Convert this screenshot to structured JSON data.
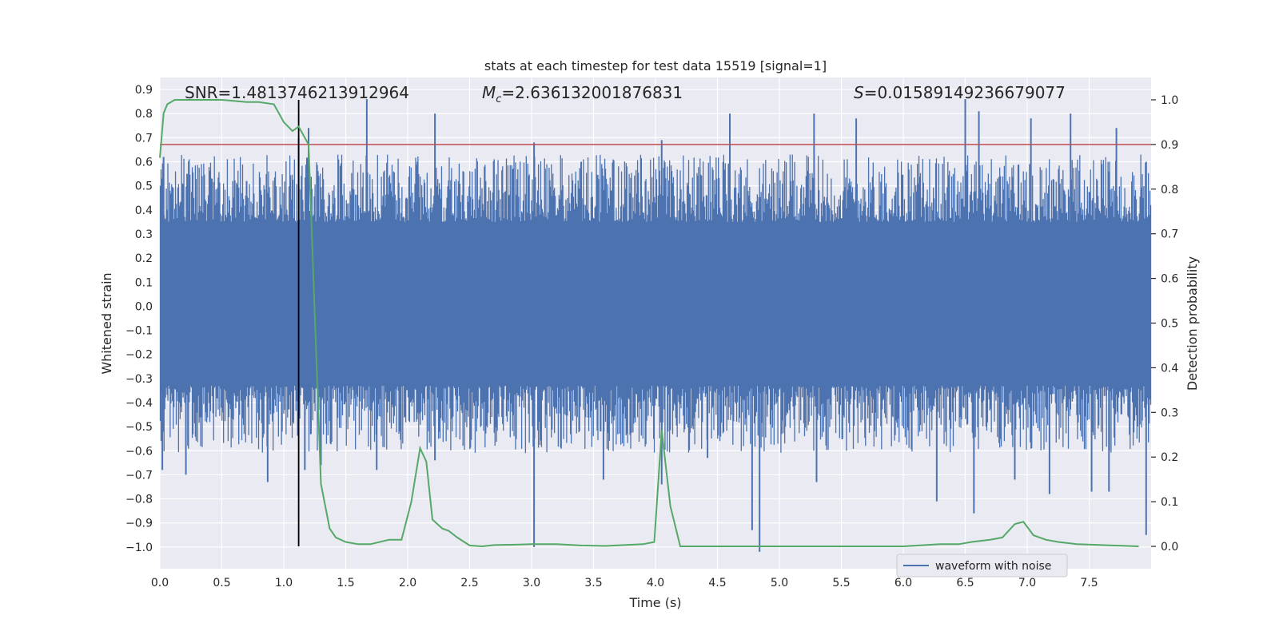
{
  "chart_data": {
    "type": "line",
    "title": "stats at each timestep for test data 15519 [signal=1]",
    "xlabel": "Time (s)",
    "ylabel": "Whitened strain",
    "y2label": "Detection probability",
    "xlim": [
      0.0,
      8.0
    ],
    "ylim": [
      -1.09,
      0.95
    ],
    "y2lim": [
      -0.05,
      1.05
    ],
    "x_ticks": [
      "0.0",
      "0.5",
      "1.0",
      "1.5",
      "2.0",
      "2.5",
      "3.0",
      "3.5",
      "4.0",
      "4.5",
      "5.0",
      "5.5",
      "6.0",
      "6.5",
      "7.0",
      "7.5"
    ],
    "y_ticks": [
      "0.9",
      "0.8",
      "0.7",
      "0.6",
      "0.5",
      "0.4",
      "0.3",
      "0.2",
      "0.1",
      "0.0",
      "-0.1",
      "-0.2",
      "-0.3",
      "-0.4",
      "-0.5",
      "-0.6",
      "-0.7",
      "-0.8",
      "-0.9",
      "-1.0"
    ],
    "y2_ticks": [
      "1.0",
      "0.9",
      "0.8",
      "0.7",
      "0.6",
      "0.5",
      "0.4",
      "0.3",
      "0.2",
      "0.1",
      "0.0"
    ],
    "annotations": {
      "snr": {
        "label": "SNR=1.4813746213912964"
      },
      "mc": {
        "symbol": "M",
        "subscript": "c",
        "value": "=2.636132001876831"
      },
      "s": {
        "symbol": "S",
        "value": "=0.01589149236679077"
      }
    },
    "threshold": {
      "axis": "y2",
      "value": 0.9,
      "color": "#c44e52"
    },
    "marker_time": {
      "x": 1.12,
      "color": "#000000"
    },
    "series": [
      {
        "name": "waveform with noise",
        "axis": "y",
        "color": "#4c72b0",
        "style": "dense noise",
        "band": [
          -0.33,
          0.35
        ],
        "positive_spikes": [
          [
            0.03,
            0.62
          ],
          [
            0.22,
            0.55
          ],
          [
            0.7,
            0.52
          ],
          [
            1.12,
            0.7
          ],
          [
            1.2,
            0.74
          ],
          [
            1.67,
            0.86
          ],
          [
            2.22,
            0.8
          ],
          [
            3.02,
            0.68
          ],
          [
            3.4,
            0.6
          ],
          [
            4.05,
            0.69
          ],
          [
            4.6,
            0.8
          ],
          [
            5.28,
            0.8
          ],
          [
            5.62,
            0.78
          ],
          [
            6.5,
            0.86
          ],
          [
            6.61,
            0.81
          ],
          [
            7.03,
            0.78
          ],
          [
            7.35,
            0.8
          ],
          [
            7.72,
            0.74
          ],
          [
            7.96,
            0.6
          ]
        ],
        "negative_spikes": [
          [
            0.02,
            -0.68
          ],
          [
            0.21,
            -0.7
          ],
          [
            0.87,
            -0.73
          ],
          [
            1.17,
            -0.68
          ],
          [
            1.3,
            -0.66
          ],
          [
            1.75,
            -0.68
          ],
          [
            2.22,
            -0.64
          ],
          [
            3.02,
            -1.0
          ],
          [
            3.58,
            -0.72
          ],
          [
            4.05,
            -0.74
          ],
          [
            4.42,
            -0.63
          ],
          [
            4.78,
            -0.93
          ],
          [
            4.84,
            -1.02
          ],
          [
            5.3,
            -0.73
          ],
          [
            6.27,
            -0.81
          ],
          [
            6.57,
            -0.86
          ],
          [
            6.9,
            -0.72
          ],
          [
            7.18,
            -0.78
          ],
          [
            7.52,
            -0.77
          ],
          [
            7.66,
            -0.77
          ],
          [
            7.96,
            -0.95
          ]
        ]
      },
      {
        "name": "detection probability",
        "axis": "y2",
        "color": "#55a868",
        "x": [
          0.0,
          0.03,
          0.06,
          0.12,
          0.25,
          0.5,
          0.7,
          0.8,
          0.92,
          1.0,
          1.07,
          1.12,
          1.2,
          1.3,
          1.37,
          1.42,
          1.5,
          1.6,
          1.7,
          1.85,
          1.95,
          2.03,
          2.1,
          2.15,
          2.2,
          2.28,
          2.33,
          2.4,
          2.5,
          2.6,
          2.7,
          2.9,
          3.0,
          3.2,
          3.4,
          3.6,
          3.9,
          3.99,
          4.05,
          4.12,
          4.2,
          4.5,
          5.0,
          5.5,
          6.0,
          6.3,
          6.45,
          6.55,
          6.7,
          6.8,
          6.9,
          6.97,
          7.05,
          7.15,
          7.25,
          7.4,
          7.6,
          7.9
        ],
        "values": [
          0.87,
          0.97,
          0.99,
          1.0,
          1.0,
          1.0,
          0.995,
          0.995,
          0.99,
          0.95,
          0.93,
          0.94,
          0.9,
          0.14,
          0.04,
          0.02,
          0.01,
          0.005,
          0.005,
          0.015,
          0.015,
          0.1,
          0.22,
          0.19,
          0.06,
          0.04,
          0.035,
          0.02,
          0.002,
          0.0,
          0.003,
          0.004,
          0.005,
          0.005,
          0.002,
          0.001,
          0.005,
          0.01,
          0.26,
          0.09,
          0.0,
          0.0,
          0.0,
          0.0,
          0.0,
          0.005,
          0.005,
          0.01,
          0.015,
          0.02,
          0.05,
          0.055,
          0.025,
          0.015,
          0.01,
          0.005,
          0.003,
          0.0
        ]
      }
    ],
    "legend": {
      "position": "lower-right",
      "entries": [
        "waveform with noise"
      ]
    }
  }
}
